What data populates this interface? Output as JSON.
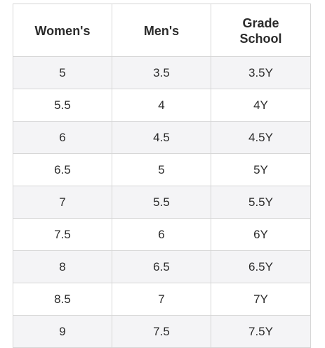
{
  "table": {
    "headers": {
      "womens": "Women's",
      "mens": "Men's",
      "grade_school_line1": "Grade",
      "grade_school_line2": "School"
    },
    "rows": [
      {
        "womens": "5",
        "mens": "3.5",
        "grade_school": "3.5Y"
      },
      {
        "womens": "5.5",
        "mens": "4",
        "grade_school": "4Y"
      },
      {
        "womens": "6",
        "mens": "4.5",
        "grade_school": "4.5Y"
      },
      {
        "womens": "6.5",
        "mens": "5",
        "grade_school": "5Y"
      },
      {
        "womens": "7",
        "mens": "5.5",
        "grade_school": "5.5Y"
      },
      {
        "womens": "7.5",
        "mens": "6",
        "grade_school": "6Y"
      },
      {
        "womens": "8",
        "mens": "6.5",
        "grade_school": "6.5Y"
      },
      {
        "womens": "8.5",
        "mens": "7",
        "grade_school": "7Y"
      },
      {
        "womens": "9",
        "mens": "7.5",
        "grade_school": "7.5Y"
      }
    ]
  },
  "colors": {
    "text": "#2b2b2b",
    "border": "#d6d6d6",
    "stripe": "#f4f4f6",
    "background": "#ffffff"
  }
}
